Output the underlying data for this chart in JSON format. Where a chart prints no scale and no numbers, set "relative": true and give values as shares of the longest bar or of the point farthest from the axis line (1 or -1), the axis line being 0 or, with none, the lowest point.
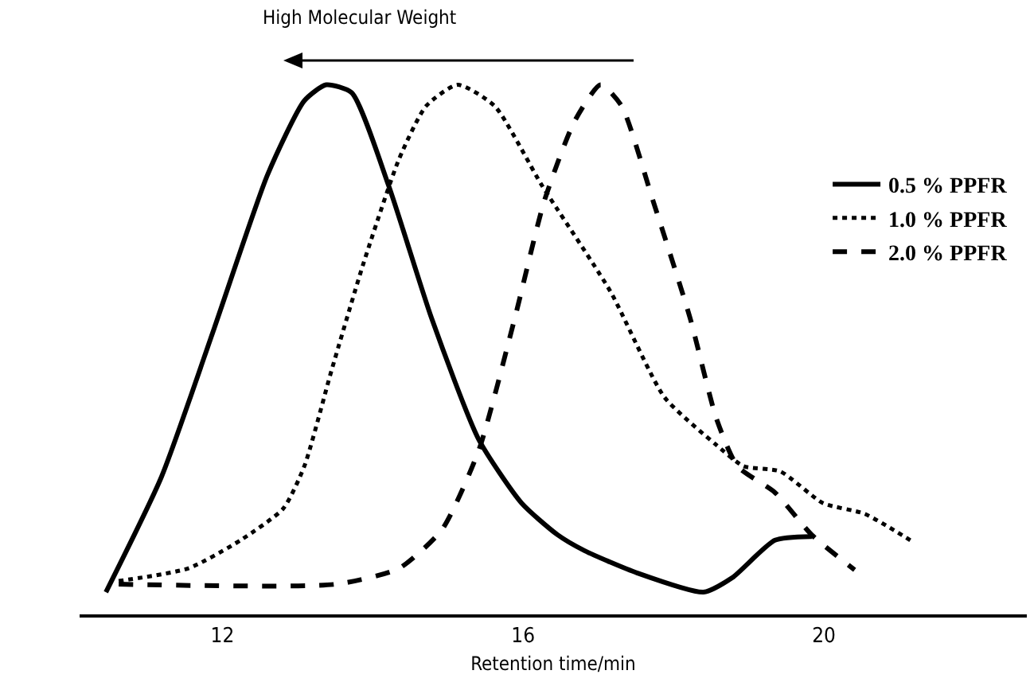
{
  "chart_data": {
    "type": "line",
    "relative": true,
    "xlabel": "Retention time/min",
    "xlim": [
      10.1,
      22.7
    ],
    "xticks": [
      12,
      16,
      20
    ],
    "grid": false,
    "legend": "right",
    "tick_labels": "x",
    "annotations": [
      "High Molecular Weight"
    ],
    "series": [
      {
        "name": "0.5 % PPFR",
        "color": "#000000",
        "line_style": "solid",
        "x": [
          10.45,
          11.19,
          11.89,
          12.6,
          13.09,
          13.38,
          13.72,
          14.21,
          14.78,
          15.41,
          15.98,
          16.46,
          16.82,
          17.52,
          18.4,
          18.78,
          19.35,
          19.84
        ],
        "values": [
          0.042,
          0.26,
          0.54,
          0.83,
          0.97,
          1.0,
          0.985,
          0.81,
          0.56,
          0.33,
          0.21,
          0.15,
          0.12,
          0.078,
          0.042,
          0.069,
          0.14,
          0.147
        ]
      },
      {
        "name": "1.0 % PPFR",
        "color": "#000000",
        "line_style": "dotted",
        "x": [
          10.62,
          11.55,
          12.24,
          12.81,
          13.09,
          13.45,
          13.87,
          14.35,
          14.71,
          15.13,
          15.62,
          16.25,
          17.16,
          17.88,
          18.57,
          18.93,
          19.42,
          19.99,
          20.54,
          21.15
        ],
        "values": [
          0.063,
          0.087,
          0.14,
          0.2,
          0.28,
          0.46,
          0.66,
          0.86,
          0.96,
          1.0,
          0.96,
          0.81,
          0.61,
          0.41,
          0.32,
          0.28,
          0.27,
          0.21,
          0.19,
          0.14
        ]
      },
      {
        "name": "2.0 % PPFR",
        "color": "#000000",
        "line_style": "dashed",
        "x": [
          10.62,
          13.51,
          14.35,
          14.92,
          15.41,
          15.89,
          16.28,
          16.68,
          17.03,
          17.31,
          17.73,
          18.22,
          18.57,
          18.85,
          19.35,
          19.84,
          20.41
        ],
        "values": [
          0.057,
          0.057,
          0.087,
          0.16,
          0.31,
          0.56,
          0.78,
          0.93,
          1.0,
          0.96,
          0.78,
          0.56,
          0.37,
          0.28,
          0.23,
          0.15,
          0.084
        ]
      }
    ]
  }
}
